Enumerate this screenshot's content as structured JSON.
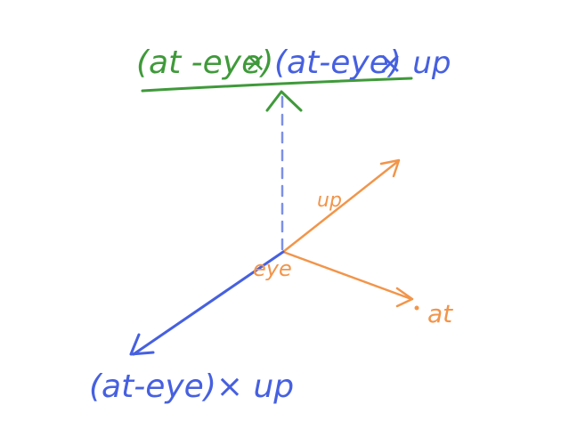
{
  "colors": {
    "green": "#3f9a3a",
    "blue": "#4660e0",
    "orange": "#f2954a"
  },
  "top_formula": {
    "part1": "(at -eye)",
    "times": "×",
    "part2": "(at-eye)",
    "part3": "× up"
  },
  "labels": {
    "up": "up",
    "eye": "eye",
    "at": "at",
    "bottom_formula": "(at-eye)× up"
  }
}
